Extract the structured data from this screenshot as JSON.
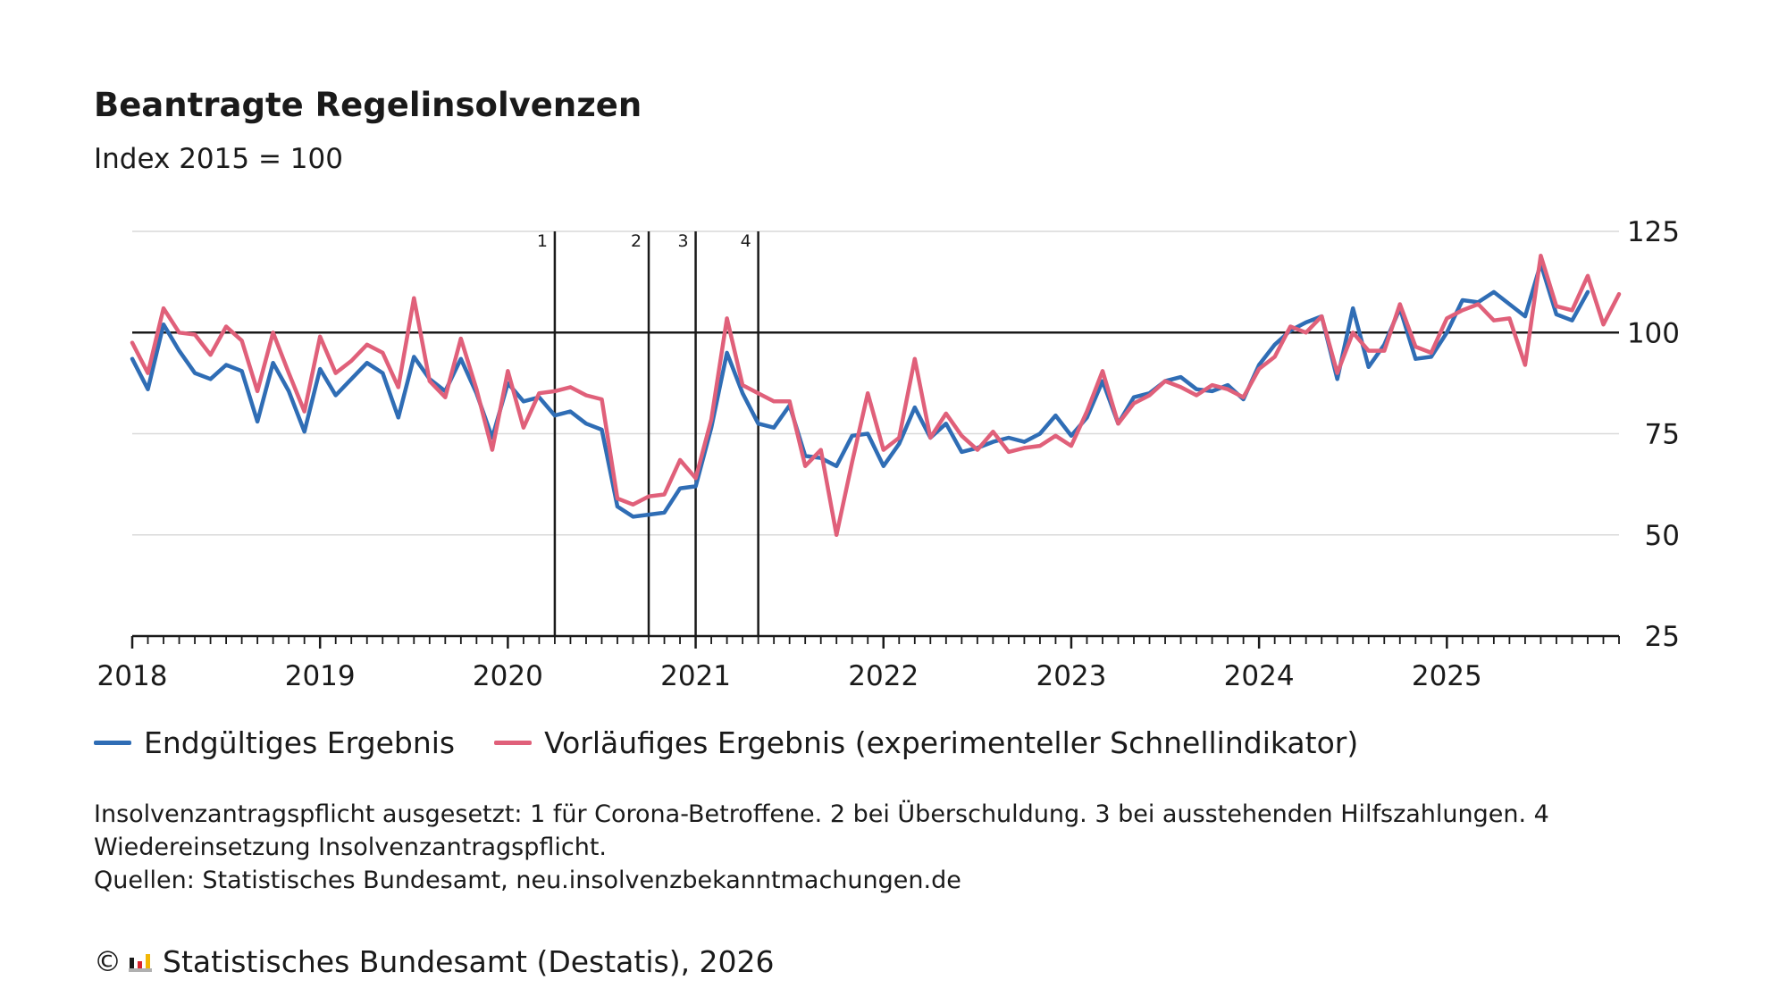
{
  "title": "Beantragte Regelinsolvenzen",
  "subtitle": "Index 2015 = 100",
  "colors": {
    "final": "#2f6db5",
    "preliminary": "#e0607a",
    "grid": "#d9d9d9",
    "axis": "#1a1a1a"
  },
  "legend": {
    "final": "Endgültiges Ergebnis",
    "preliminary": "Vorläufiges Ergebnis (experimenteller Schnellindikator)"
  },
  "note": {
    "line1": "Insolvenzantragspflicht ausgesetzt: 1 für Corona-Betroffene. 2 bei Überschuldung. 3 bei ausstehenden Hilfszahlungen. 4",
    "line2": "Wiedereinsetzung Insolvenzantragspflicht.",
    "sources": "Quellen: Statistisches Bundesamt, neu.insolvenzbekanntmachungen.de"
  },
  "footer": {
    "copyright_icon": "copyright-icon",
    "logo_icon": "destatis-logo-icon",
    "text": "Statistisches Bundesamt (Destatis), 2026"
  },
  "chart_data": {
    "type": "line",
    "title": "Beantragte Regelinsolvenzen",
    "subtitle": "Index 2015 = 100",
    "x_start": "2018-01",
    "x_end": "2025-12",
    "x_ticks": [
      "2018",
      "2019",
      "2020",
      "2021",
      "2022",
      "2023",
      "2024",
      "2025"
    ],
    "y_ticks": [
      25,
      50,
      75,
      100,
      125
    ],
    "ylim": [
      25,
      125
    ],
    "y_axis_position": "right",
    "grid": true,
    "reference_line": 100,
    "legend_position": "bottom",
    "markers": [
      {
        "label": "1",
        "date": "2020-04"
      },
      {
        "label": "2",
        "date": "2020-10"
      },
      {
        "label": "3",
        "date": "2021-01"
      },
      {
        "label": "4",
        "date": "2021-05"
      }
    ],
    "series": [
      {
        "name": "Endgültiges Ergebnis",
        "color": "#2f6db5",
        "start": "2018-01",
        "values": [
          93.5,
          86,
          102,
          95.5,
          90,
          88.5,
          92,
          90.5,
          78,
          92.5,
          85.5,
          75.5,
          91,
          84.5,
          88.5,
          92.5,
          90,
          79,
          94,
          88.5,
          85.5,
          93.5,
          85,
          74,
          87.5,
          83,
          84,
          79.5,
          80.5,
          77.5,
          76,
          57,
          54.5,
          55,
          55.5,
          61.5,
          62,
          76.5,
          95,
          85,
          77.5,
          76.5,
          82,
          69.5,
          69,
          67,
          74.5,
          75,
          67,
          72.5,
          81.5,
          74,
          77.5,
          70.5,
          71.5,
          73,
          74,
          73,
          75,
          79.5,
          74.5,
          79,
          88,
          77.5,
          84,
          85,
          88,
          89,
          86,
          85.5,
          87,
          83.5,
          92,
          97,
          100.5,
          102.5,
          104,
          88.5,
          106,
          91.5,
          97,
          106,
          93.5,
          94,
          100,
          108,
          107.5,
          110,
          107,
          104,
          117,
          104.5,
          103,
          110
        ]
      },
      {
        "name": "Vorläufiges Ergebnis (experimenteller Schnellindikator)",
        "color": "#e0607a",
        "start": "2018-01",
        "values": [
          97.5,
          90,
          106,
          100,
          99.5,
          94.5,
          101.5,
          98,
          85.5,
          100,
          90,
          80.5,
          99,
          90,
          93,
          97,
          95,
          86.5,
          108.5,
          88,
          84,
          98.5,
          86,
          71,
          90.5,
          76.5,
          85,
          85.5,
          86.5,
          84.5,
          83.5,
          59,
          57.5,
          59.5,
          60,
          68.5,
          64,
          78.5,
          103.5,
          87,
          85,
          83,
          83,
          67,
          71,
          50,
          68,
          85,
          71,
          74,
          93.5,
          74,
          80,
          74.5,
          71,
          75.5,
          70.5,
          71.5,
          72,
          74.5,
          72,
          80.5,
          90.5,
          77.5,
          82.5,
          84.5,
          88,
          86.5,
          84.5,
          87,
          86,
          84,
          91,
          94,
          101.5,
          100,
          104,
          90,
          100,
          95.5,
          95.5,
          107,
          96.5,
          95,
          103.5,
          105.5,
          107,
          103,
          103.5,
          92,
          119,
          106.5,
          105.5,
          114,
          102,
          109.5
        ]
      }
    ]
  }
}
